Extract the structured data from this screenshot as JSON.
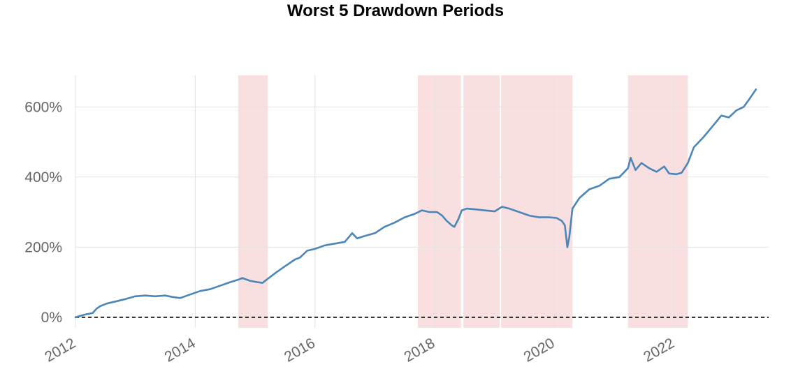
{
  "chart_data": {
    "type": "line",
    "title": "Worst 5 Drawdown Periods",
    "xlabel": "",
    "ylabel": "",
    "xlim": [
      "2012-01-01",
      "2023-07-31"
    ],
    "ylim": [
      -30,
      690
    ],
    "y_ticks": [
      0,
      200,
      400,
      600
    ],
    "y_tick_labels": [
      "0%",
      "200%",
      "400%",
      "600%"
    ],
    "x_ticks": [
      "2012-01-01",
      "2014-01-01",
      "2016-01-01",
      "2018-01-01",
      "2020-01-01",
      "2022-01-01"
    ],
    "x_tick_labels": [
      "2012",
      "2014",
      "2016",
      "2018",
      "2020",
      "2022"
    ],
    "grid": true,
    "line_color": "#4a86b8",
    "shade_color": "#f9dfe0",
    "baseline": {
      "y": 0,
      "style": "dashed",
      "color": "#000000"
    },
    "drawdown_periods": [
      {
        "start": "2014-09-20",
        "end": "2015-03-20"
      },
      {
        "start": "2017-09-20",
        "end": "2018-06-10"
      },
      {
        "start": "2018-06-25",
        "end": "2019-02-01"
      },
      {
        "start": "2019-02-10",
        "end": "2020-04-20"
      },
      {
        "start": "2021-03-25",
        "end": "2022-03-25"
      }
    ],
    "series": [
      {
        "values": [
          [
            "2012-01-01",
            0
          ],
          [
            "2012-03-01",
            8
          ],
          [
            "2012-04-15",
            12
          ],
          [
            "2012-05-10",
            25
          ],
          [
            "2012-06-01",
            32
          ],
          [
            "2012-07-15",
            40
          ],
          [
            "2012-09-01",
            45
          ],
          [
            "2012-11-01",
            52
          ],
          [
            "2013-01-01",
            60
          ],
          [
            "2013-03-01",
            62
          ],
          [
            "2013-05-01",
            60
          ],
          [
            "2013-07-01",
            62
          ],
          [
            "2013-08-15",
            58
          ],
          [
            "2013-10-01",
            55
          ],
          [
            "2013-12-01",
            65
          ],
          [
            "2014-02-01",
            75
          ],
          [
            "2014-04-01",
            80
          ],
          [
            "2014-06-01",
            90
          ],
          [
            "2014-08-01",
            100
          ],
          [
            "2014-09-25",
            108
          ],
          [
            "2014-10-15",
            112
          ],
          [
            "2014-12-01",
            104
          ],
          [
            "2015-01-15",
            100
          ],
          [
            "2015-02-15",
            98
          ],
          [
            "2015-03-20",
            110
          ],
          [
            "2015-05-01",
            125
          ],
          [
            "2015-07-01",
            145
          ],
          [
            "2015-09-01",
            165
          ],
          [
            "2015-10-01",
            170
          ],
          [
            "2015-11-15",
            190
          ],
          [
            "2016-01-01",
            195
          ],
          [
            "2016-03-01",
            205
          ],
          [
            "2016-05-01",
            210
          ],
          [
            "2016-07-01",
            215
          ],
          [
            "2016-08-15",
            240
          ],
          [
            "2016-09-15",
            225
          ],
          [
            "2016-11-01",
            232
          ],
          [
            "2017-01-01",
            240
          ],
          [
            "2017-03-01",
            258
          ],
          [
            "2017-05-01",
            270
          ],
          [
            "2017-07-01",
            285
          ],
          [
            "2017-09-01",
            295
          ],
          [
            "2017-10-15",
            305
          ],
          [
            "2017-12-01",
            300
          ],
          [
            "2018-01-15",
            300
          ],
          [
            "2018-02-15",
            290
          ],
          [
            "2018-03-15",
            275
          ],
          [
            "2018-04-15",
            262
          ],
          [
            "2018-05-01",
            258
          ],
          [
            "2018-05-25",
            280
          ],
          [
            "2018-06-15",
            305
          ],
          [
            "2018-07-15",
            310
          ],
          [
            "2018-09-01",
            308
          ],
          [
            "2018-11-01",
            305
          ],
          [
            "2019-01-01",
            302
          ],
          [
            "2019-02-15",
            315
          ],
          [
            "2019-04-01",
            310
          ],
          [
            "2019-06-01",
            300
          ],
          [
            "2019-08-01",
            290
          ],
          [
            "2019-10-01",
            285
          ],
          [
            "2019-12-01",
            285
          ],
          [
            "2020-01-15",
            283
          ],
          [
            "2020-02-15",
            275
          ],
          [
            "2020-03-05",
            262
          ],
          [
            "2020-03-20",
            200
          ],
          [
            "2020-04-01",
            230
          ],
          [
            "2020-04-20",
            310
          ],
          [
            "2020-06-01",
            340
          ],
          [
            "2020-08-01",
            365
          ],
          [
            "2020-10-01",
            375
          ],
          [
            "2020-12-01",
            395
          ],
          [
            "2021-02-01",
            400
          ],
          [
            "2021-03-25",
            425
          ],
          [
            "2021-04-10",
            455
          ],
          [
            "2021-05-10",
            420
          ],
          [
            "2021-06-15",
            440
          ],
          [
            "2021-08-01",
            425
          ],
          [
            "2021-09-15",
            415
          ],
          [
            "2021-11-01",
            430
          ],
          [
            "2021-12-01",
            410
          ],
          [
            "2022-01-15",
            408
          ],
          [
            "2022-02-15",
            412
          ],
          [
            "2022-03-25",
            440
          ],
          [
            "2022-05-01",
            485
          ],
          [
            "2022-07-01",
            515
          ],
          [
            "2022-09-01",
            550
          ],
          [
            "2022-10-15",
            575
          ],
          [
            "2022-12-01",
            570
          ],
          [
            "2023-01-15",
            590
          ],
          [
            "2023-03-01",
            600
          ],
          [
            "2023-04-01",
            620
          ],
          [
            "2023-05-15",
            650
          ]
        ]
      }
    ]
  }
}
